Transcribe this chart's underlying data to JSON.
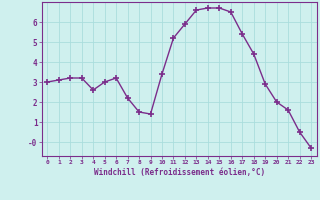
{
  "x": [
    0,
    1,
    2,
    3,
    4,
    5,
    6,
    7,
    8,
    9,
    10,
    11,
    12,
    13,
    14,
    15,
    16,
    17,
    18,
    19,
    20,
    21,
    22,
    23
  ],
  "y": [
    3.0,
    3.1,
    3.2,
    3.2,
    2.6,
    3.0,
    3.2,
    2.2,
    1.5,
    1.4,
    3.4,
    5.2,
    5.9,
    6.6,
    6.7,
    6.7,
    6.5,
    5.4,
    4.4,
    2.9,
    2.0,
    1.6,
    0.5,
    -0.3
  ],
  "line_color": "#7b2d8b",
  "marker": "+",
  "marker_size": 4,
  "bg_color": "#cff0ee",
  "grid_color": "#aadddd",
  "xlabel": "Windchill (Refroidissement éolien,°C)",
  "xlabel_color": "#7b2d8b",
  "tick_color": "#7b2d8b",
  "ylim": [
    -0.7,
    7.0
  ],
  "xlim": [
    -0.5,
    23.5
  ],
  "yticks": [
    0,
    1,
    2,
    3,
    4,
    5,
    6
  ],
  "ytick_labels": [
    "-0",
    "1",
    "2",
    "3",
    "4",
    "5",
    "6"
  ],
  "xticks": [
    0,
    1,
    2,
    3,
    4,
    5,
    6,
    7,
    8,
    9,
    10,
    11,
    12,
    13,
    14,
    15,
    16,
    17,
    18,
    19,
    20,
    21,
    22,
    23
  ],
  "xtick_labels": [
    "0",
    "1",
    "2",
    "3",
    "4",
    "5",
    "6",
    "7",
    "8",
    "9",
    "10",
    "11",
    "12",
    "13",
    "14",
    "15",
    "16",
    "17",
    "18",
    "19",
    "20",
    "21",
    "22",
    "23"
  ]
}
